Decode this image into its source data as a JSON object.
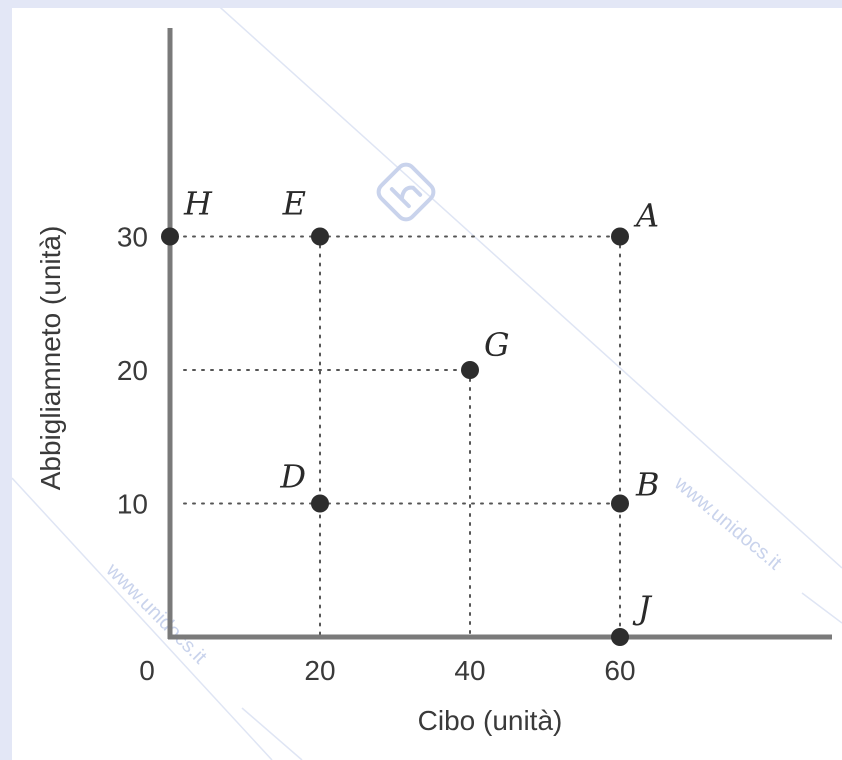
{
  "watermark": {
    "text": "www.unidocs.it",
    "colors": {
      "text": "#c9d3ec",
      "line": "#dfe5f4"
    }
  },
  "chart_data": {
    "type": "scatter",
    "xlabel": "Cibo (unità)",
    "ylabel": "Abbigliamneto (unità)",
    "xlim": [
      0,
      80
    ],
    "ylim": [
      0,
      38
    ],
    "x_ticks": [
      0,
      20,
      40,
      60
    ],
    "y_ticks": [
      10,
      20,
      30
    ],
    "grid": "dotted guide lines to points",
    "points": [
      {
        "label": "H",
        "x": 0,
        "y": 30
      },
      {
        "label": "E",
        "x": 20,
        "y": 30
      },
      {
        "label": "A",
        "x": 60,
        "y": 30
      },
      {
        "label": "G",
        "x": 40,
        "y": 20
      },
      {
        "label": "D",
        "x": 20,
        "y": 10
      },
      {
        "label": "B",
        "x": 60,
        "y": 10
      },
      {
        "label": "J",
        "x": 60,
        "y": 0
      }
    ],
    "colors": {
      "axis": "#7a7a7a",
      "point": "#2d2d2d",
      "guide": "#555555"
    }
  }
}
